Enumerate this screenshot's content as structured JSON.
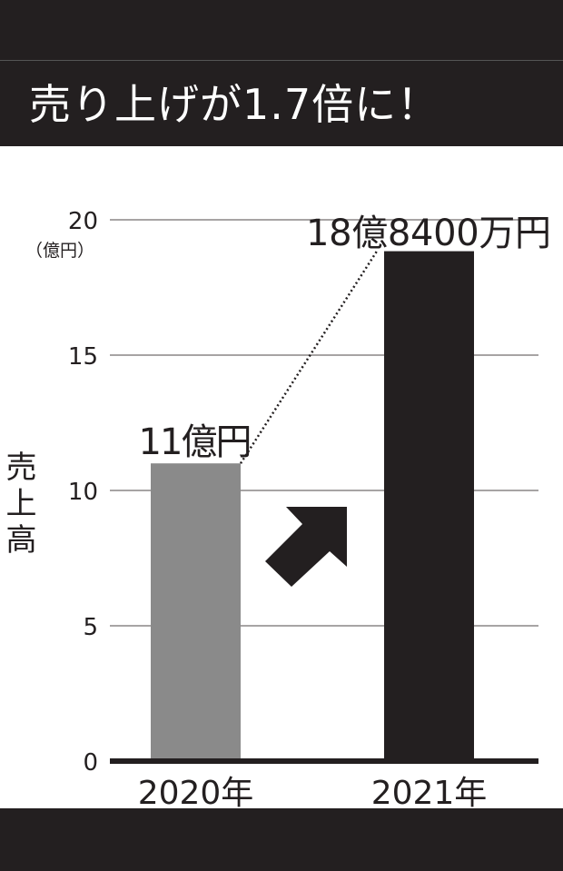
{
  "title": "売り上げが1.7倍に！",
  "chart_data": {
    "type": "bar",
    "title": "売り上げが1.7倍に！",
    "ylabel": "売上高",
    "yunit": "（億円）",
    "categories": [
      "2020年",
      "2021年"
    ],
    "values": [
      11,
      18.84
    ],
    "data_labels": [
      "11億円",
      "18億8400万円"
    ],
    "ylim": [
      0,
      20
    ],
    "yticks": [
      0,
      5,
      10,
      15,
      20
    ],
    "ytick_labels": [
      "0",
      "5",
      "10",
      "15",
      "20"
    ],
    "grid": true,
    "colors": {
      "2020年": "#8a8a8a",
      "2021年": "#231f20"
    },
    "annotations": [
      "dotted connector between bar tops",
      "up-right arrow"
    ]
  }
}
